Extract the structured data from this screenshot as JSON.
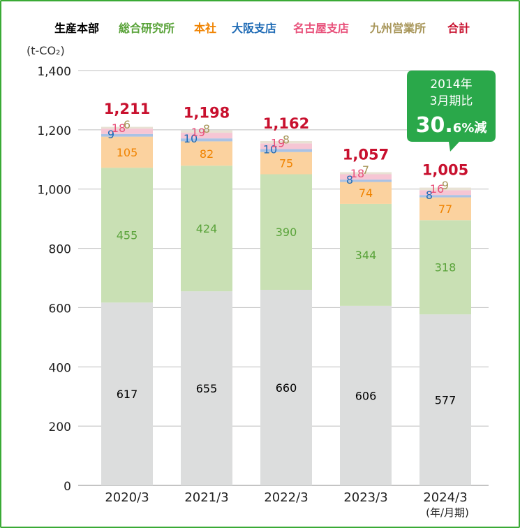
{
  "chart_data": {
    "type": "bar",
    "stacked": true,
    "unit_label": "(t-CO₂)",
    "categories": [
      "2020/3",
      "2021/3",
      "2022/3",
      "2023/3",
      "2024/3"
    ],
    "x_unit_note": "(年/月期)",
    "ylim": [
      0,
      1400
    ],
    "yticks": [
      0,
      200,
      400,
      600,
      800,
      1000,
      1200,
      1400
    ],
    "ytick_labels": [
      "0",
      "200",
      "400",
      "600",
      "800",
      "1,000",
      "1,200",
      "1,400"
    ],
    "grid": true,
    "legend_position": "top",
    "series": [
      {
        "name": "生産本部",
        "values": [
          617,
          655,
          660,
          606,
          577
        ],
        "fill": "#dcdddd",
        "label_color": "#000000"
      },
      {
        "name": "総合研究所",
        "values": [
          455,
          424,
          390,
          344,
          318
        ],
        "fill": "#c9e0b4",
        "label_color": "#5aa33a"
      },
      {
        "name": "本社",
        "values": [
          105,
          82,
          75,
          74,
          77
        ],
        "fill": "#fbd29f",
        "label_color": "#f08300"
      },
      {
        "name": "大阪支店",
        "values": [
          9,
          10,
          10,
          8,
          8
        ],
        "fill": "#a9c2e4",
        "label_color": "#1f6bb5"
      },
      {
        "name": "名古屋支店",
        "values": [
          18,
          19,
          19,
          18,
          16
        ],
        "fill": "#f6c6d4",
        "label_color": "#e8507a"
      },
      {
        "name": "九州営業所",
        "values": [
          6,
          8,
          8,
          7,
          9
        ],
        "fill": "#e8e2d4",
        "label_color": "#a8965a"
      }
    ],
    "total": {
      "name": "合計",
      "values": [
        1211,
        1198,
        1162,
        1057,
        1005
      ],
      "labels": [
        "1,211",
        "1,198",
        "1,162",
        "1,057",
        "1,005"
      ],
      "color": "#c8102e"
    },
    "callout": {
      "line1": "2014年",
      "line2": "3月期比",
      "value_big": "30.",
      "value_small": "6%減",
      "color": "#2aa84a"
    }
  }
}
